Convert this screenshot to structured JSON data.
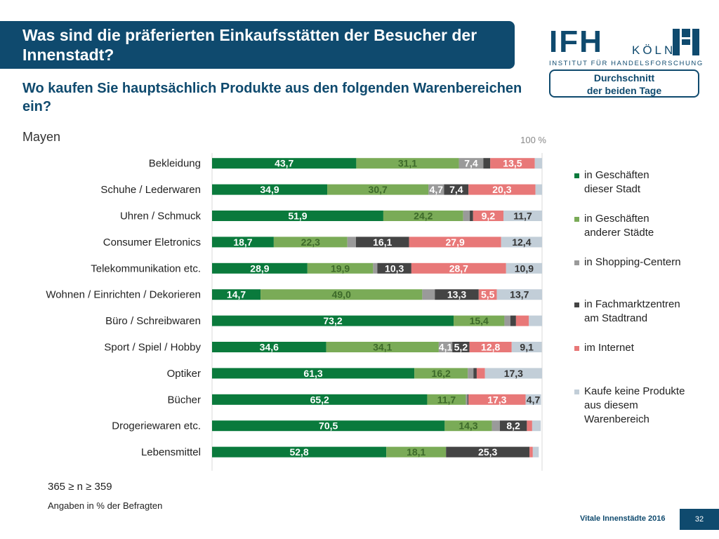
{
  "header": {
    "title": "Was sind die präferierten Einkaufsstätten der Besucher der Innenstadt?",
    "subtitle": "Wo kaufen Sie hauptsächlich Produkte aus den folgenden Warenbereichen ein?",
    "average_box": "Durchschnitt\nder beiden Tage"
  },
  "logo": {
    "main": "IFH",
    "city": "KÖLN",
    "institute": "INSTITUT FÜR HANDELSFORSCHUNG"
  },
  "city_label": "Mayen",
  "notes": {
    "sample": "365 ≥ n ≥ 359",
    "units": "Angaben in % der Befragten"
  },
  "footer": {
    "text": "Vitale Innenstädte 2016",
    "page": "32"
  },
  "colors": {
    "brand": "#0f4a6e",
    "series": [
      "#0a7a3c",
      "#7aab57",
      "#9a9a9a",
      "#444444",
      "#e87878",
      "#c2ced8"
    ]
  },
  "chart_data": {
    "type": "bar",
    "orientation": "horizontal",
    "stacked": true,
    "scale_label": "100 %",
    "xlim": [
      0,
      100
    ],
    "categories": [
      "Bekleidung",
      "Schuhe / Lederwaren",
      "Uhren / Schmuck",
      "Consumer Eletronics",
      "Telekommunikation etc.",
      "Wohnen / Einrichten / Dekorieren",
      "Büro / Schreibwaren",
      "Sport / Spiel / Hobby",
      "Optiker",
      "Bücher",
      "Drogeriewaren etc.",
      "Lebensmittel"
    ],
    "series": [
      {
        "name": "in Geschäften\ndieser Stadt",
        "values": [
          43.7,
          34.9,
          51.9,
          18.7,
          28.9,
          14.7,
          73.2,
          34.6,
          61.3,
          65.2,
          70.5,
          52.8
        ]
      },
      {
        "name": "in Geschäften\nanderer Städte",
        "values": [
          31.1,
          30.7,
          24.2,
          22.3,
          19.9,
          49.0,
          15.4,
          34.1,
          16.2,
          11.7,
          14.3,
          18.1
        ]
      },
      {
        "name": "in Shopping-Centern",
        "values": [
          7.4,
          4.7,
          2.0,
          2.6,
          1.3,
          3.8,
          1.8,
          4.1,
          1.7,
          0.5,
          2.4,
          0.0
        ]
      },
      {
        "name": "in Fachmarktzentren\nam Stadtrand",
        "values": [
          2.1,
          7.4,
          1.0,
          16.1,
          10.3,
          13.3,
          1.7,
          5.2,
          1.0,
          0.3,
          8.2,
          25.3
        ]
      },
      {
        "name": "im Internet",
        "values": [
          13.5,
          20.3,
          9.2,
          27.9,
          28.7,
          5.5,
          3.9,
          12.8,
          2.5,
          17.3,
          1.6,
          1.0
        ]
      },
      {
        "name": "Kaufe keine Produkte\naus diesem\nWarenbereich",
        "values": [
          2.2,
          2.0,
          11.7,
          12.4,
          10.9,
          13.7,
          4.0,
          9.1,
          17.3,
          4.7,
          2.6,
          1.8
        ]
      }
    ],
    "data_labels": [
      [
        "43,7",
        "31,1",
        "7,4",
        "",
        "13,5",
        ""
      ],
      [
        "34,9",
        "30,7",
        "4,7",
        "7,4",
        "20,3",
        ""
      ],
      [
        "51,9",
        "24,2",
        "",
        "",
        "9,2",
        "11,7"
      ],
      [
        "18,7",
        "22,3",
        "",
        "16,1",
        "27,9",
        "12,4"
      ],
      [
        "28,9",
        "19,9",
        "",
        "10,3",
        "28,7",
        "10,9"
      ],
      [
        "14,7",
        "49,0",
        "",
        "13,3",
        "5,5",
        "13,7"
      ],
      [
        "73,2",
        "15,4",
        "",
        "",
        "",
        ""
      ],
      [
        "34,6",
        "34,1",
        "4,1",
        "5,2",
        "12,8",
        "9,1"
      ],
      [
        "61,3",
        "16,2",
        "",
        "",
        "",
        "17,3"
      ],
      [
        "65,2",
        "11,7",
        "",
        "",
        "17,3",
        "4,7"
      ],
      [
        "70,5",
        "14,3",
        "",
        "8,2",
        "",
        ""
      ],
      [
        "52,8",
        "18,1",
        "",
        "25,3",
        "",
        ""
      ]
    ],
    "legend_position": "right"
  }
}
